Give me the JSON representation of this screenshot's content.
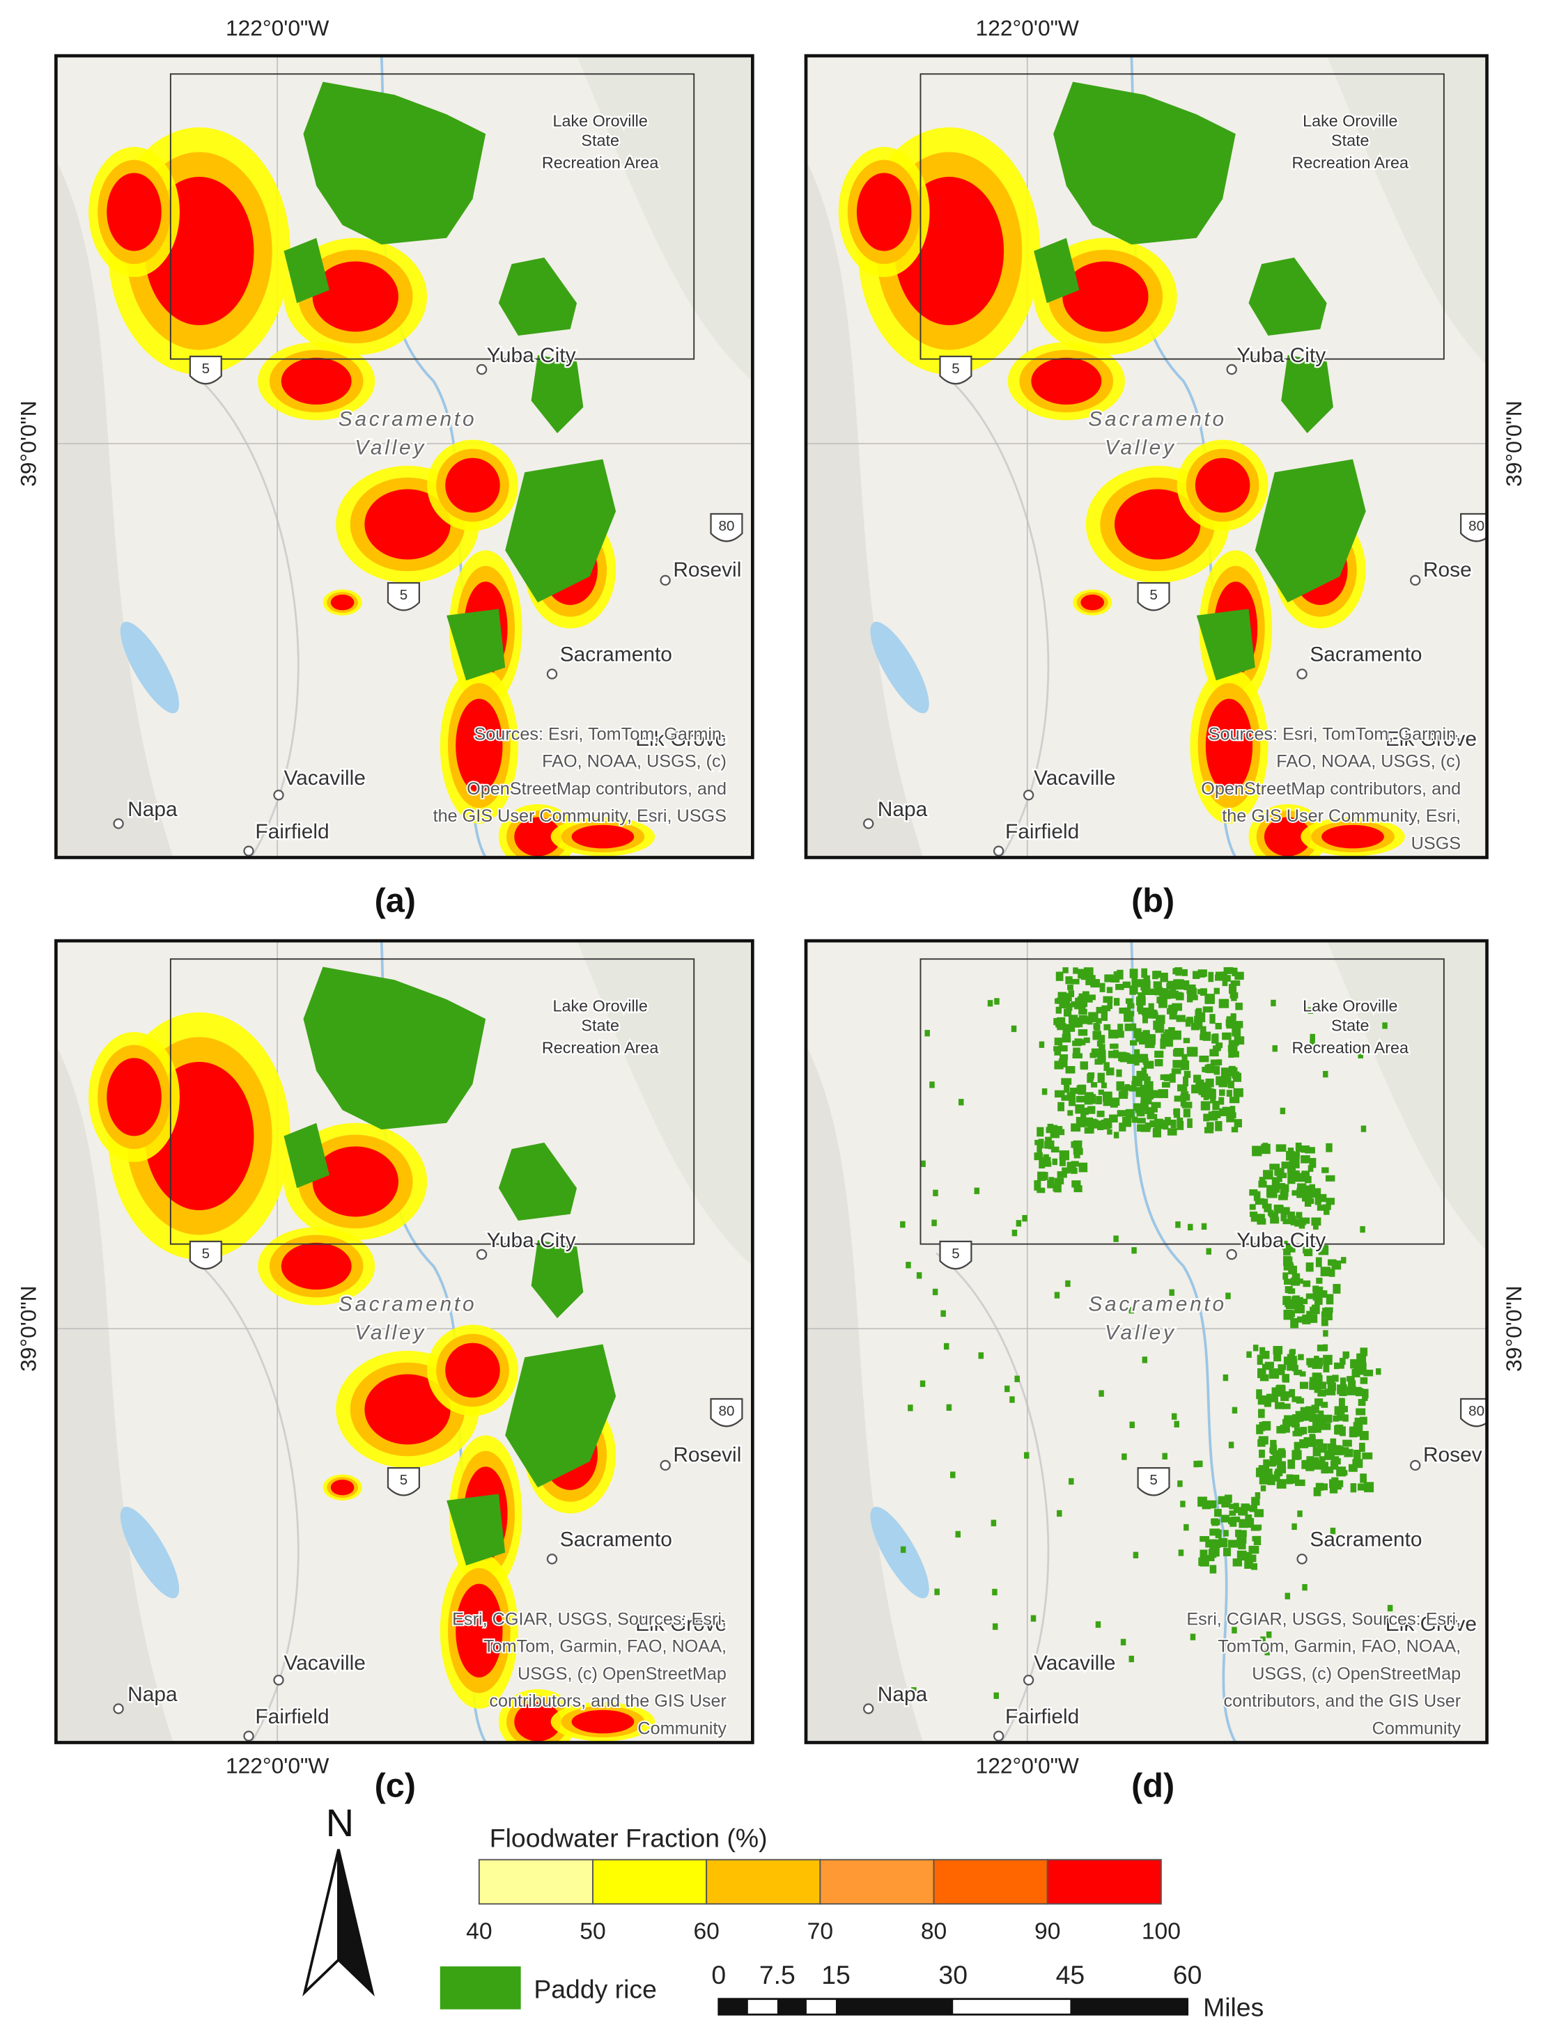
{
  "panels": [
    {
      "label": "(a)",
      "lon_label": "122°0'0\"W",
      "lat_label": "39°0'0\"N",
      "lon_position": "top",
      "lat_position": "left",
      "style": "fraction",
      "places": [
        "Lake Oroville",
        "State",
        "Recreation Area",
        "Yuba City",
        "Sacramento",
        "Valley",
        "Rosevil",
        "Sacramento",
        "Elk Grove",
        "Vacaville",
        "Napa",
        "Fairfield"
      ],
      "shields": [
        "5",
        "80",
        "5"
      ],
      "attribution": [
        "Sources:  Esri, TomTom, Garmin,",
        "FAO, NOAA, USGS, (c)",
        "OpenStreetMap contributors, and",
        "the GIS User Community, Esri, USGS"
      ]
    },
    {
      "label": "(b)",
      "lon_label": "122°0'0\"W",
      "lat_label": "39°0'0\"N",
      "lon_position": "top",
      "lat_position": "right",
      "style": "fraction",
      "places": [
        "Lake Oroville",
        "State",
        "Recreation Area",
        "Yuba City",
        "Sacramento",
        "Valley",
        "Rose",
        "Sacramento",
        "Elk Grove",
        "Vacaville",
        "Napa",
        "Fairfield"
      ],
      "shields": [
        "5",
        "80",
        "5"
      ],
      "attribution": [
        "Sources: Esri, TomTom, Garmin,",
        "FAO, NOAA, USGS, (c)",
        "OpenStreetMap contributors, and",
        "the GIS User Community, Esri,",
        "USGS"
      ]
    },
    {
      "label": "(c)",
      "lon_label": "122°0'0\"W",
      "lat_label": "39°0'0\"N",
      "lon_position": "bottom",
      "lat_position": "left",
      "style": "fraction",
      "places": [
        "Lake Oroville",
        "State",
        "Recreation Area",
        "Yuba City",
        "Sacramento",
        "Valley",
        "Rosevil",
        "Sacramento",
        "Elk Grove",
        "Vacaville",
        "Napa",
        "Fairfield"
      ],
      "shields": [
        "5",
        "80",
        "5"
      ],
      "attribution": [
        "Esri, CGIAR, USGS, Sources:  Esri,",
        "TomTom, Garmin, FAO, NOAA,",
        "USGS, (c) OpenStreetMap",
        "contributors, and the GIS User",
        "Community"
      ]
    },
    {
      "label": "(d)",
      "lon_label": "122°0'0\"W",
      "lat_label": "39°0'0\"N",
      "lon_position": "bottom",
      "lat_position": "right",
      "style": "paddy",
      "places": [
        "Lake Oroville",
        "State",
        "Recreation Area",
        "Yuba City",
        "Sacramento",
        "Valley",
        "Rosev",
        "Sacramento",
        "Elk Grove",
        "Vacaville",
        "Napa",
        "Fairfield"
      ],
      "shields": [
        "5",
        "80",
        "5"
      ],
      "attribution": [
        "Esri, CGIAR, USGS, Sources:  Esri,",
        "TomTom, Garmin, FAO, NOAA,",
        "USGS, (c) OpenStreetMap",
        "contributors, and the GIS User",
        "Community"
      ]
    }
  ],
  "legend": {
    "title": "Floodwater Fraction (%)",
    "breaks": [
      40,
      50,
      60,
      70,
      80,
      90,
      100
    ],
    "colors": [
      "#ffff99",
      "#ffff00",
      "#ffc000",
      "#ff9933",
      "#ff6600",
      "#ff0000"
    ],
    "paddy_label": "Paddy rice",
    "paddy_color": "#3aa314"
  },
  "north": "N",
  "scale_bar": {
    "ticks": [
      0,
      7.5,
      15,
      30,
      45,
      60
    ],
    "units": "Miles"
  }
}
